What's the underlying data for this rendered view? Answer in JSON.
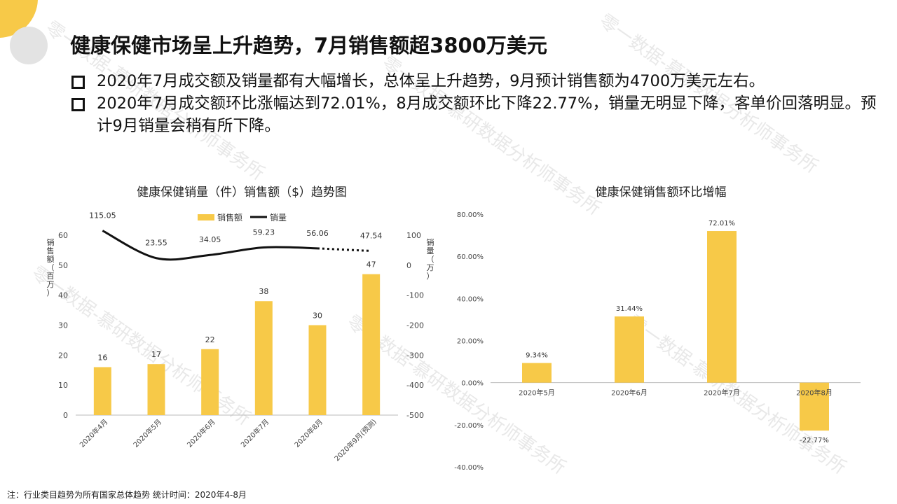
{
  "watermark": "零一数据-慕研数据分析师事务所",
  "title": "健康保健市场呈上升趋势，7月销售额超3800万美元",
  "bullets": [
    "2020年7月成交额及销量都有大幅增长，总体呈上升趋势，9月预计销售额为4700万美元左右。",
    "2020年7月成交额环比涨幅达到72.01%，8月成交额环比下降22.77%，销量无明显下降，客单价回落明显。预计9月销量会稍有所下降。"
  ],
  "footnote": "注：行业类目趋势为所有国家总体趋势   统计时间：2020年4-8月",
  "colors": {
    "bar": "#f7c948",
    "line": "#111111",
    "accent": "#f7c948"
  },
  "chart_data": [
    {
      "type": "bar",
      "title": "健康保健销量（件）销售额（$）趋势图",
      "categories": [
        "2020年4月",
        "2020年5月",
        "2020年6月",
        "2020年7月",
        "2020年8月",
        "2020年9月(预测)"
      ],
      "ylabel": "销售额（百万）",
      "ylabel2": "销量（万）",
      "ylim": [
        0,
        60
      ],
      "yticks": [
        0,
        10,
        20,
        30,
        40,
        50,
        60
      ],
      "ylim2": [
        -500,
        100
      ],
      "yticks2": [
        -500,
        -400,
        -300,
        -200,
        -100,
        0,
        100
      ],
      "legend": [
        "销售额",
        "销量"
      ],
      "series": [
        {
          "name": "销售额",
          "type": "bar",
          "values": [
            16,
            17,
            22,
            38,
            30,
            47
          ]
        },
        {
          "name": "销量",
          "type": "line",
          "axis": "right",
          "values": [
            115.05,
            23.55,
            34.05,
            59.23,
            56.06,
            47.54
          ],
          "dashed_from_index": 4
        }
      ]
    },
    {
      "type": "bar",
      "title": "健康保健销售额环比增幅",
      "categories": [
        "2020年5月",
        "2020年6月",
        "2020年7月",
        "2020年8月"
      ],
      "ylim": [
        -40,
        80
      ],
      "yticks": [
        -40,
        -20,
        0,
        20,
        40,
        60,
        80
      ],
      "series": [
        {
          "name": "环比增幅",
          "values": [
            9.34,
            31.44,
            72.01,
            -22.77
          ],
          "labels": [
            "9.34%",
            "31.44%",
            "72.01%",
            "-22.77%"
          ]
        }
      ]
    }
  ]
}
